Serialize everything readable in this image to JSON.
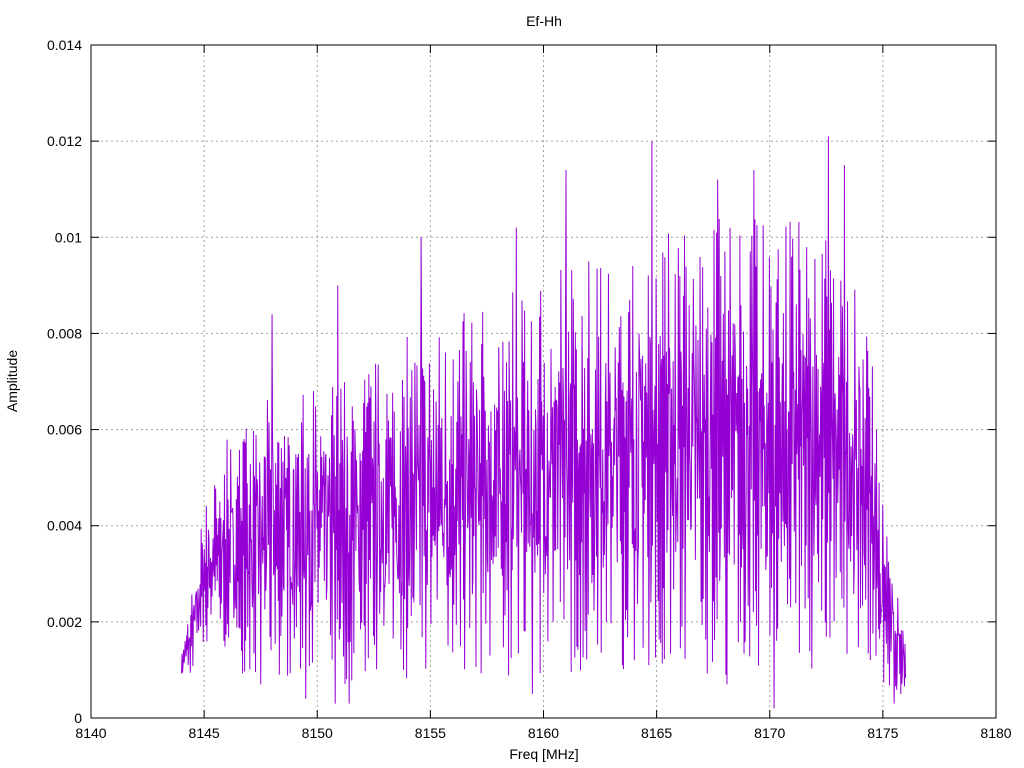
{
  "chart_data": {
    "type": "line",
    "title": "Ef-Hh",
    "xlabel": "Freq [MHz]",
    "ylabel": "Amplitude",
    "xlim": [
      8140,
      8180
    ],
    "ylim": [
      0,
      0.014
    ],
    "x_ticks": [
      8140,
      8145,
      8150,
      8155,
      8160,
      8165,
      8170,
      8175,
      8180
    ],
    "x_tick_labels": [
      "8140",
      "8145",
      "8150",
      "8155",
      "8160",
      "8165",
      "8170",
      "8175",
      "8180"
    ],
    "y_ticks": [
      0,
      0.002,
      0.004,
      0.006,
      0.008,
      0.01,
      0.012,
      0.014
    ],
    "y_tick_labels": [
      "0",
      "0.002",
      "0.004",
      "0.006",
      "0.008",
      "0.01",
      "0.012",
      "0.014"
    ],
    "grid": true,
    "legend": "none",
    "series_color": "#9400d3",
    "series": [
      {
        "x_start": 8144.0,
        "x_end": 8176.0,
        "envelope_x": [
          8144.0,
          8144.5,
          8145.0,
          8146.0,
          8147.0,
          8148.0,
          8150.0,
          8152.0,
          8155.0,
          8158.0,
          8160.0,
          8163.0,
          8165.0,
          8168.0,
          8170.0,
          8172.0,
          8173.5,
          8174.5,
          8175.0,
          8176.0
        ],
        "envelope_upper": [
          0.0013,
          0.0028,
          0.0045,
          0.0058,
          0.0062,
          0.0068,
          0.0072,
          0.0075,
          0.0082,
          0.0087,
          0.0095,
          0.0098,
          0.0103,
          0.0105,
          0.0104,
          0.0105,
          0.0095,
          0.008,
          0.0045,
          0.0015
        ],
        "envelope_lower": [
          0.0008,
          0.0009,
          0.0015,
          0.0012,
          0.0008,
          0.0008,
          0.0007,
          0.0007,
          0.0008,
          0.0008,
          0.0008,
          0.001,
          0.001,
          0.0009,
          0.0008,
          0.0009,
          0.0012,
          0.0012,
          0.0004,
          0.0005
        ],
        "notable_peaks": [
          {
            "x": 8148.0,
            "y": 0.0084
          },
          {
            "x": 8150.9,
            "y": 0.009
          },
          {
            "x": 8154.6,
            "y": 0.01
          },
          {
            "x": 8158.8,
            "y": 0.0102
          },
          {
            "x": 8161.0,
            "y": 0.0114
          },
          {
            "x": 8164.8,
            "y": 0.012
          },
          {
            "x": 8167.7,
            "y": 0.0112
          },
          {
            "x": 8169.3,
            "y": 0.0114
          },
          {
            "x": 8172.6,
            "y": 0.0121
          },
          {
            "x": 8173.3,
            "y": 0.0115
          }
        ],
        "notable_dips": [
          {
            "x": 8147.5,
            "y": 0.0007
          },
          {
            "x": 8149.5,
            "y": 0.0004
          },
          {
            "x": 8150.8,
            "y": 0.0003
          },
          {
            "x": 8151.4,
            "y": 0.0003
          },
          {
            "x": 8159.5,
            "y": 0.0005
          },
          {
            "x": 8168.1,
            "y": 0.0007
          },
          {
            "x": 8170.2,
            "y": 0.0002
          },
          {
            "x": 8175.5,
            "y": 0.0003
          },
          {
            "x": 8175.8,
            "y": 0.0005
          }
        ],
        "sample_count": 1400,
        "seed": 7
      }
    ]
  }
}
